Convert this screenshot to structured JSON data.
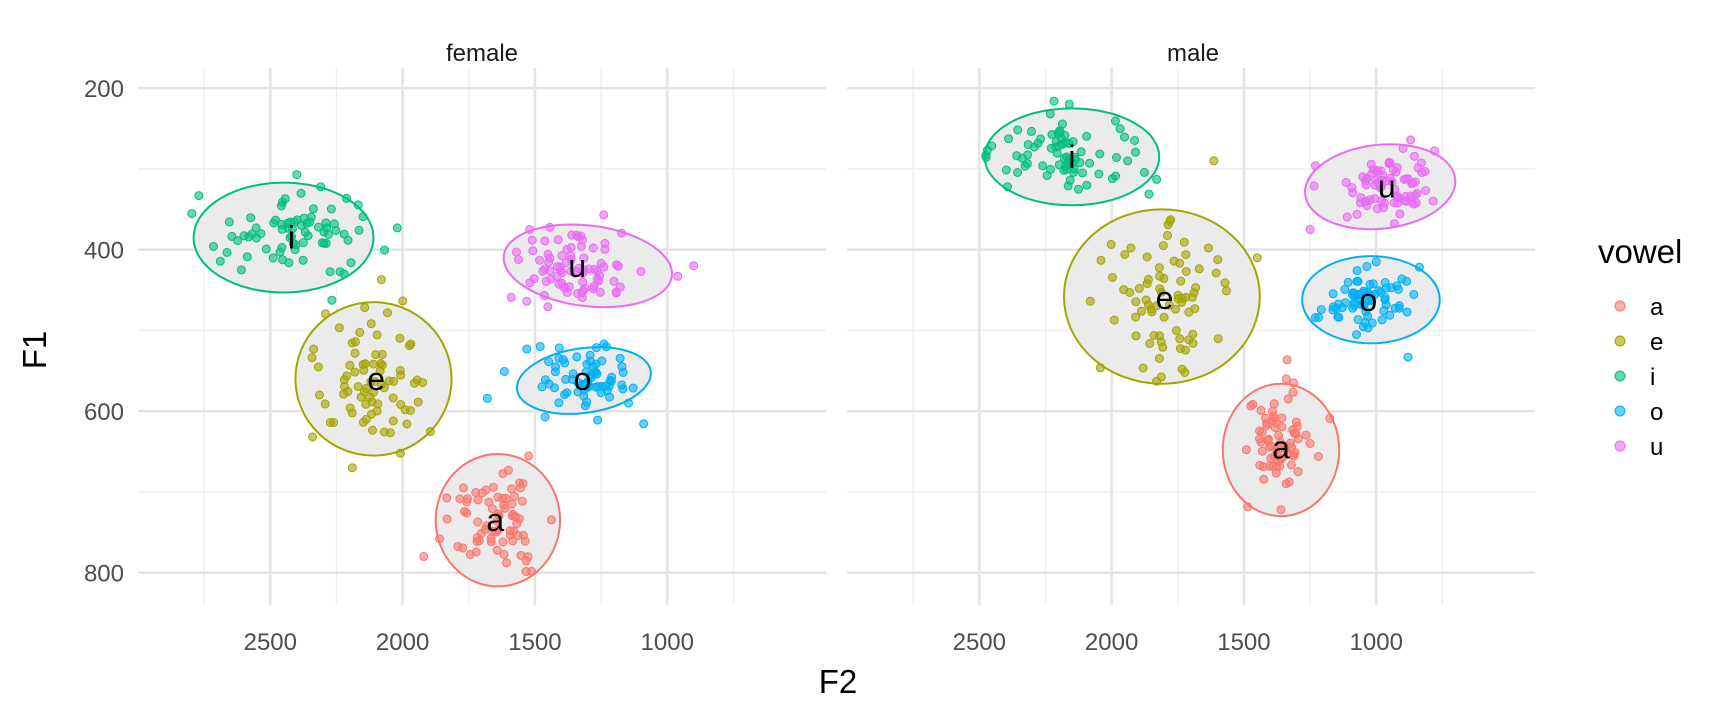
{
  "chart_data": {
    "type": "scatter",
    "xlabel": "F2",
    "ylabel": "F1",
    "x_reversed": true,
    "y_reversed": true,
    "xlim": [
      3000,
      400
    ],
    "ylim": [
      175,
      840
    ],
    "x_ticks": [
      2500,
      2000,
      1500,
      1000
    ],
    "y_ticks": [
      200,
      400,
      600,
      800
    ],
    "grid": true,
    "legend": {
      "title": "vowel",
      "position": "right",
      "items": [
        "a",
        "e",
        "i",
        "o",
        "u"
      ]
    },
    "colors": {
      "a": "#F8766D",
      "e": "#A3A500",
      "i": "#00BF7D",
      "o": "#00B0F6",
      "u": "#E76BF3"
    },
    "panels": [
      {
        "title": "female",
        "groups": [
          {
            "vowel": "a",
            "center": [
              1650,
              735
            ],
            "sd": [
              90,
              28
            ],
            "n": 70,
            "seed": 11,
            "extra": [
              [
                1920,
                780
              ],
              [
                1555,
                695
              ],
              [
                1770,
                695
              ]
            ],
            "ellipse": {
              "cx": 1640,
              "cy": 735,
              "rx": 235,
              "ry": 82,
              "angle": 0
            }
          },
          {
            "vowel": "e",
            "center": [
              2100,
              560
            ],
            "sd": [
              110,
              45
            ],
            "n": 75,
            "seed": 23,
            "extra": [
              [
                2190,
                670
              ],
              [
                2340,
                632
              ],
              [
                2080,
                437
              ]
            ],
            "ellipse": {
              "cx": 2110,
              "cy": 560,
              "rx": 295,
              "ry": 95,
              "angle": 0
            }
          },
          {
            "vowel": "i",
            "center": [
              2420,
              385
            ],
            "sd": [
              130,
              25
            ],
            "n": 75,
            "seed": 37,
            "extra": [
              [
                2770,
                333
              ],
              [
                2400,
                307
              ],
              [
                2020,
                373
              ]
            ],
            "ellipse": {
              "cx": 2450,
              "cy": 385,
              "rx": 340,
              "ry": 68,
              "angle": 0
            }
          },
          {
            "vowel": "o",
            "center": [
              1320,
              560
            ],
            "sd": [
              90,
              20
            ],
            "n": 70,
            "seed": 41,
            "extra": [
              [
                1680,
                584
              ],
              [
                1480,
                520
              ],
              [
                1230,
                520
              ]
            ],
            "ellipse": {
              "cx": 1315,
              "cy": 562,
              "rx": 255,
              "ry": 40,
              "angle": -8
            }
          },
          {
            "vowel": "u",
            "center": [
              1340,
              420
            ],
            "sd": [
              110,
              22
            ],
            "n": 80,
            "seed": 53,
            "extra": [
              [
                900,
                420
              ],
              [
                960,
                433
              ],
              [
                1520,
                375
              ]
            ],
            "ellipse": {
              "cx": 1300,
              "cy": 420,
              "rx": 320,
              "ry": 50,
              "angle": 7
            }
          }
        ]
      },
      {
        "title": "male",
        "groups": [
          {
            "vowel": "a",
            "center": [
              1360,
              645
            ],
            "sd": [
              70,
              32
            ],
            "n": 70,
            "seed": 61,
            "extra": [
              [
                1340,
                560
              ],
              [
                1360,
                722
              ],
              [
                1250,
                640
              ]
            ],
            "ellipse": {
              "cx": 1360,
              "cy": 648,
              "rx": 220,
              "ry": 82,
              "angle": 0
            }
          },
          {
            "vowel": "e",
            "center": [
              1800,
              460
            ],
            "sd": [
              120,
              45
            ],
            "n": 75,
            "seed": 73,
            "extra": [
              [
                1950,
                406
              ],
              [
                1780,
                365
              ],
              [
                1450,
                410
              ],
              [
                1830,
                563
              ]
            ],
            "ellipse": {
              "cx": 1810,
              "cy": 458,
              "rx": 370,
              "ry": 108,
              "angle": 0
            }
          },
          {
            "vowel": "i",
            "center": [
              2150,
              285
            ],
            "sd": [
              130,
              22
            ],
            "n": 75,
            "seed": 89,
            "extra": [
              [
                2470,
                277
              ],
              [
                2160,
                220
              ],
              [
                1830,
                313
              ]
            ],
            "ellipse": {
              "cx": 2150,
              "cy": 285,
              "rx": 330,
              "ry": 60,
              "angle": 0
            }
          },
          {
            "vowel": "o",
            "center": [
              1030,
              462
            ],
            "sd": [
              85,
              18
            ],
            "n": 70,
            "seed": 97,
            "extra": [
              [
                1230,
                484
              ],
              [
                880,
                533
              ],
              [
                1000,
                415
              ]
            ],
            "ellipse": {
              "cx": 1020,
              "cy": 462,
              "rx": 260,
              "ry": 54,
              "angle": 0
            }
          },
          {
            "vowel": "u",
            "center": [
              960,
              322
            ],
            "sd": [
              85,
              20
            ],
            "n": 75,
            "seed": 101,
            "extra": [
              [
                1250,
                375
              ],
              [
                870,
                264
              ],
              [
                1230,
                296
              ]
            ],
            "ellipse": {
              "cx": 985,
              "cy": 322,
              "rx": 285,
              "ry": 52,
              "angle": -6
            }
          }
        ]
      }
    ]
  }
}
